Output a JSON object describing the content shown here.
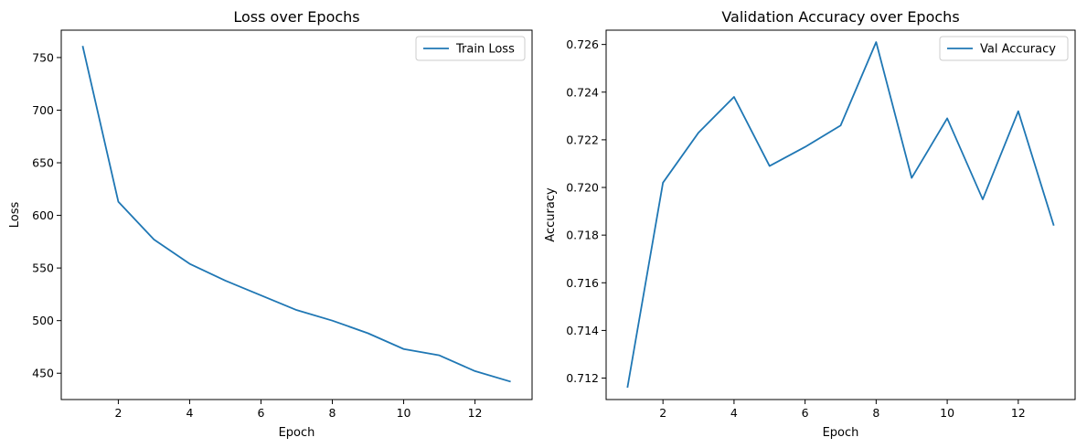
{
  "chart_data": [
    {
      "type": "line",
      "title": "Loss over Epochs",
      "xlabel": "Epoch",
      "ylabel": "Loss",
      "xlim": [
        0.4,
        13.6
      ],
      "ylim": [
        425,
        776
      ],
      "xticks": [
        2,
        4,
        6,
        8,
        10,
        12
      ],
      "yticks": [
        450,
        500,
        550,
        600,
        650,
        700,
        750
      ],
      "tick_labels_x": [
        "2",
        "4",
        "6",
        "8",
        "10",
        "12"
      ],
      "tick_labels_y": [
        "450",
        "500",
        "550",
        "600",
        "650",
        "700",
        "750"
      ],
      "legend": "top-right",
      "grid": false,
      "color": "#1f77b4",
      "x": [
        1,
        2,
        3,
        4,
        5,
        6,
        7,
        8,
        9,
        10,
        11,
        12,
        13
      ],
      "series": [
        {
          "name": "Train Loss",
          "values": [
            761,
            613,
            577,
            554,
            538,
            524,
            510,
            500,
            488,
            473,
            467,
            452,
            442
          ]
        }
      ]
    },
    {
      "type": "line",
      "title": "Validation Accuracy over Epochs",
      "xlabel": "Epoch",
      "ylabel": "Accuracy",
      "xlim": [
        0.4,
        13.6
      ],
      "ylim": [
        0.7111,
        0.7266
      ],
      "xticks": [
        2,
        4,
        6,
        8,
        10,
        12
      ],
      "yticks": [
        0.712,
        0.714,
        0.716,
        0.718,
        0.72,
        0.722,
        0.724,
        0.726
      ],
      "tick_labels_x": [
        "2",
        "4",
        "6",
        "8",
        "10",
        "12"
      ],
      "tick_labels_y": [
        "0.712",
        "0.714",
        "0.716",
        "0.718",
        "0.720",
        "0.722",
        "0.724",
        "0.726"
      ],
      "legend": "top-right",
      "grid": false,
      "color": "#1f77b4",
      "x": [
        1,
        2,
        3,
        4,
        5,
        6,
        7,
        8,
        9,
        10,
        11,
        12,
        13
      ],
      "series": [
        {
          "name": "Val Accuracy",
          "values": [
            0.7116,
            0.7202,
            0.7223,
            0.7238,
            0.7209,
            0.7217,
            0.7226,
            0.7261,
            0.7204,
            0.7229,
            0.7195,
            0.7232,
            0.7184
          ]
        }
      ]
    }
  ]
}
